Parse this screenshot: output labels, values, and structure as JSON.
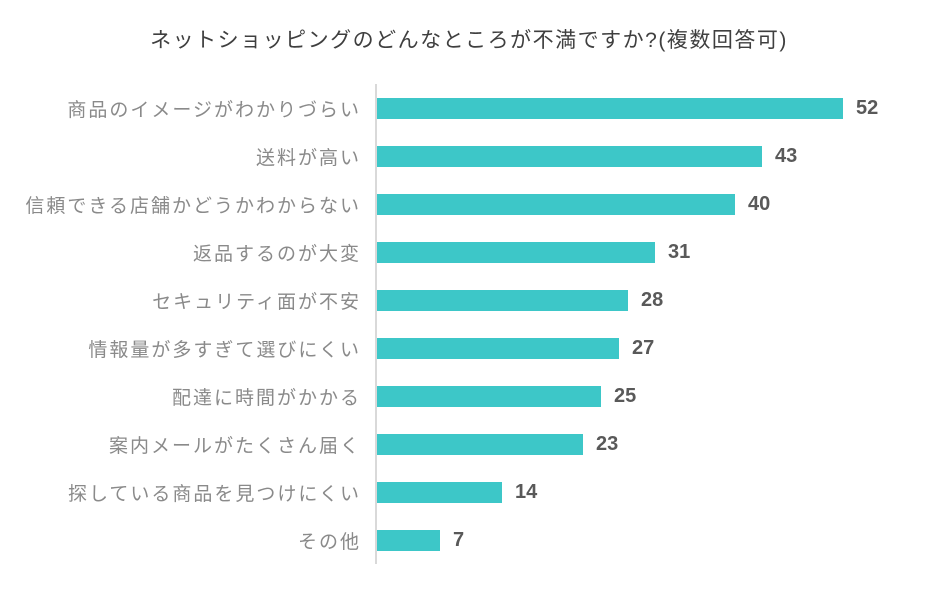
{
  "chart_data": {
    "type": "bar",
    "orientation": "horizontal",
    "title": "ネットショッピングのどんなところが不満ですか?(複数回答可)",
    "categories": [
      "商品のイメージがわかりづらい",
      "送料が高い",
      "信頼できる店舗かどうかわからない",
      "返品するのが大変",
      "セキュリティ面が不安",
      "情報量が多すぎて選びにくい",
      "配達に時間がかかる",
      "案内メールがたくさん届く",
      "探している商品を見つけにくい",
      "その他"
    ],
    "values": [
      52,
      43,
      40,
      31,
      28,
      27,
      25,
      23,
      14,
      7
    ],
    "xlabel": "",
    "ylabel": "",
    "xlim": [
      0,
      58
    ],
    "grid": false,
    "legend": false,
    "value_labels": true,
    "bar_color": "#3dc7c8",
    "axis_line_color": "#d9d9d9",
    "category_label_color": "#8a8a8a",
    "value_label_color": "#595959",
    "title_color": "#3f3f3f"
  }
}
